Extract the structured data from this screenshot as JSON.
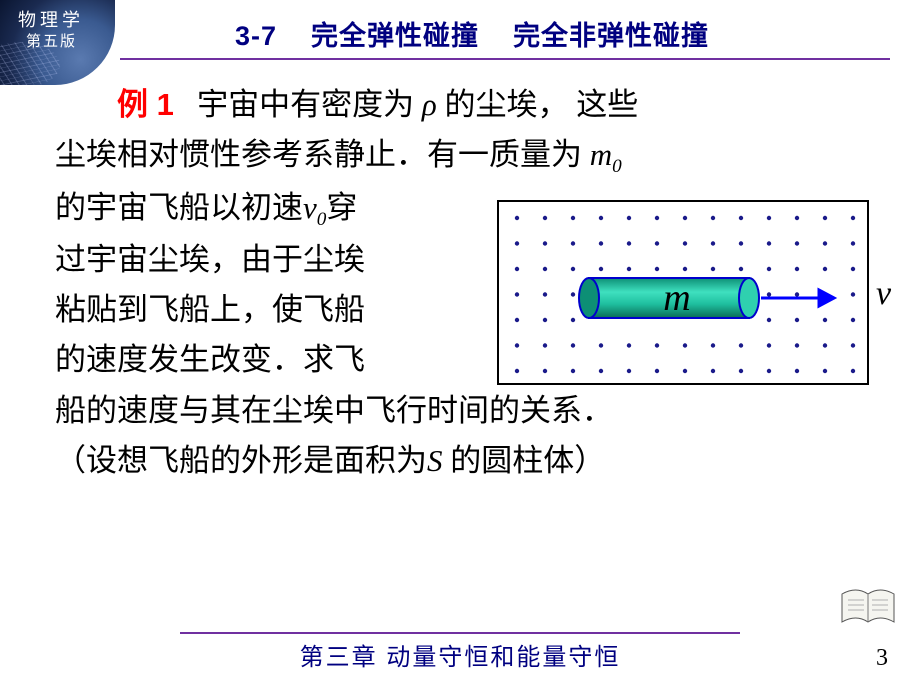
{
  "logo": {
    "line1": "物理学",
    "line2": "第五版"
  },
  "title": {
    "section": "3-7",
    "part1": "完全弹性碰撞",
    "part2": "完全非弹性碰撞"
  },
  "example": {
    "label": "例 1",
    "line1_a": "宇宙中有密度为",
    "rho": "ρ",
    "line1_b": " 的尘埃，  这些",
    "line2_a": "尘埃相对惯性参考系静止．有一质量为",
    "m0_m": "m",
    "m0_sub": "0",
    "line3": "的宇宙飞船以初速",
    "v0_v": "v",
    "v0_sub": "0",
    "line3_b": "穿",
    "line4": "过宇宙尘埃，由于尘埃",
    "line5": "粘贴到飞船上，使飞船",
    "line6": "的速度发生改变．求飞",
    "line7": "船的速度与其在尘埃中飞行时间的关系．",
    "line8_a": "（设想飞船的外形是面积为",
    "S": "S",
    "line8_b": " 的圆柱体）"
  },
  "diagram": {
    "dot_rows": 7,
    "dot_cols": 13,
    "dot_color": "#1a1a8a",
    "ship_fill": "#1fbf9f",
    "ship_stroke": "#0000cc",
    "m_label": "m",
    "v_label": "v",
    "arrow_color": "#0000ff"
  },
  "footer": {
    "chapter": "第三章   动量守恒和能量守恒",
    "page": "3"
  }
}
